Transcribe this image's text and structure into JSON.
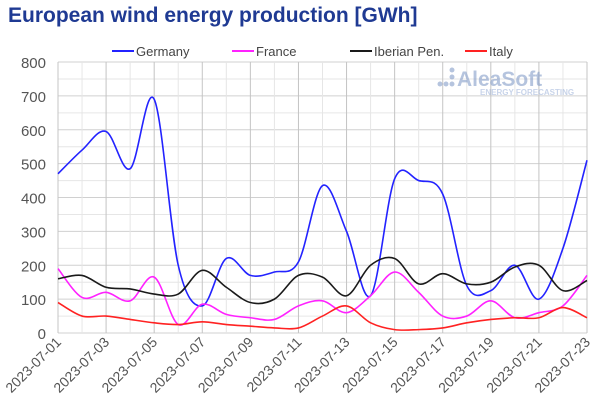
{
  "chart_data": {
    "type": "line",
    "title": "European wind energy production [GWh]",
    "xlabel": "",
    "ylabel": "",
    "ylim": [
      0,
      800
    ],
    "yticks": [
      0,
      100,
      200,
      300,
      400,
      500,
      600,
      700,
      800
    ],
    "x": [
      "2023-07-01",
      "2023-07-02",
      "2023-07-03",
      "2023-07-04",
      "2023-07-05",
      "2023-07-06",
      "2023-07-07",
      "2023-07-08",
      "2023-07-09",
      "2023-07-10",
      "2023-07-11",
      "2023-07-12",
      "2023-07-13",
      "2023-07-14",
      "2023-07-15",
      "2023-07-16",
      "2023-07-17",
      "2023-07-18",
      "2023-07-19",
      "2023-07-20",
      "2023-07-21",
      "2023-07-22",
      "2023-07-23"
    ],
    "xtick_labels": [
      "2023-07-01",
      "2023-07-03",
      "2023-07-05",
      "2023-07-07",
      "2023-07-09",
      "2023-07-11",
      "2023-07-13",
      "2023-07-15",
      "2023-07-17",
      "2023-07-19",
      "2023-07-21",
      "2023-07-23"
    ],
    "grid": true,
    "legend_position": "top",
    "series": [
      {
        "name": "Germany",
        "color": "#2323ff",
        "values": [
          470,
          540,
          595,
          485,
          690,
          200,
          80,
          220,
          170,
          180,
          210,
          435,
          300,
          110,
          455,
          450,
          410,
          140,
          125,
          200,
          100,
          250,
          510
        ]
      },
      {
        "name": "France",
        "color": "#ff22ff",
        "values": [
          190,
          105,
          120,
          95,
          165,
          25,
          85,
          55,
          45,
          40,
          80,
          95,
          60,
          110,
          180,
          120,
          50,
          50,
          95,
          45,
          60,
          80,
          170
        ]
      },
      {
        "name": "Iberian Pen.",
        "color": "#1a1a1a",
        "values": [
          160,
          170,
          135,
          130,
          115,
          115,
          185,
          135,
          90,
          100,
          170,
          165,
          110,
          200,
          220,
          145,
          175,
          145,
          150,
          195,
          200,
          125,
          155
        ]
      },
      {
        "name": "Italy",
        "color": "#ff2222",
        "values": [
          90,
          50,
          50,
          40,
          30,
          25,
          33,
          25,
          20,
          15,
          15,
          50,
          80,
          30,
          10,
          10,
          15,
          30,
          40,
          45,
          45,
          75,
          45
        ]
      }
    ]
  },
  "watermark": {
    "brand": "AleaSoft",
    "tagline": "ENERGY FORECASTING"
  }
}
